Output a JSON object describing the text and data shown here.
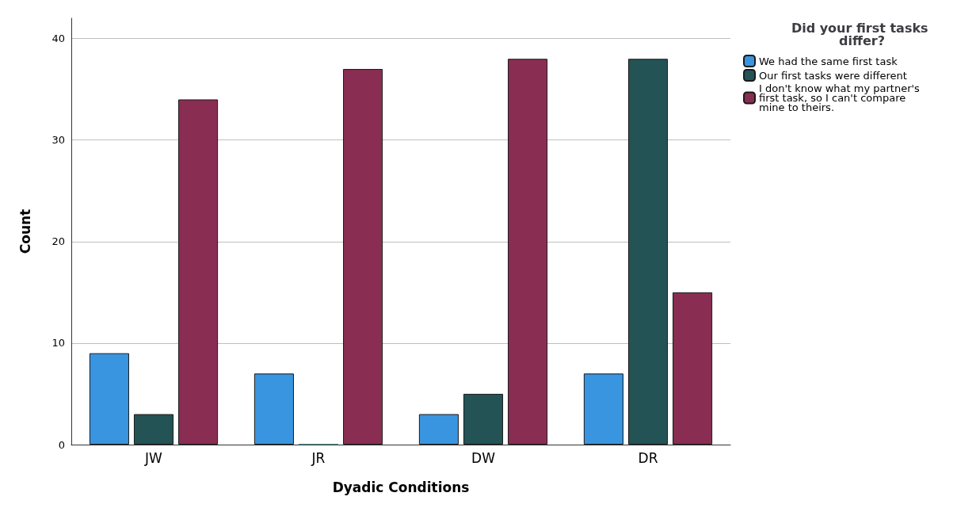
{
  "chart_data": {
    "type": "bar",
    "xlabel": "Dyadic Conditions",
    "ylabel": "Count",
    "legend_title": "Did your first tasks differ?",
    "categories": [
      "JW",
      "JR",
      "DW",
      "DR"
    ],
    "series": [
      {
        "name": "We had the same first task",
        "color": "#3a95e0",
        "values": [
          9,
          7,
          3,
          7
        ]
      },
      {
        "name": "Our first tasks were different",
        "color": "#235355",
        "values": [
          3,
          0,
          5,
          38
        ]
      },
      {
        "name": "I don't know what my partner's first task, so I can't compare mine to theirs.",
        "color": "#8a2d52",
        "values": [
          34,
          37,
          38,
          15
        ]
      }
    ],
    "ylim": [
      0,
      42
    ],
    "yticks": [
      0,
      10,
      20,
      30,
      40
    ],
    "grid": "y",
    "legend": "top right"
  }
}
